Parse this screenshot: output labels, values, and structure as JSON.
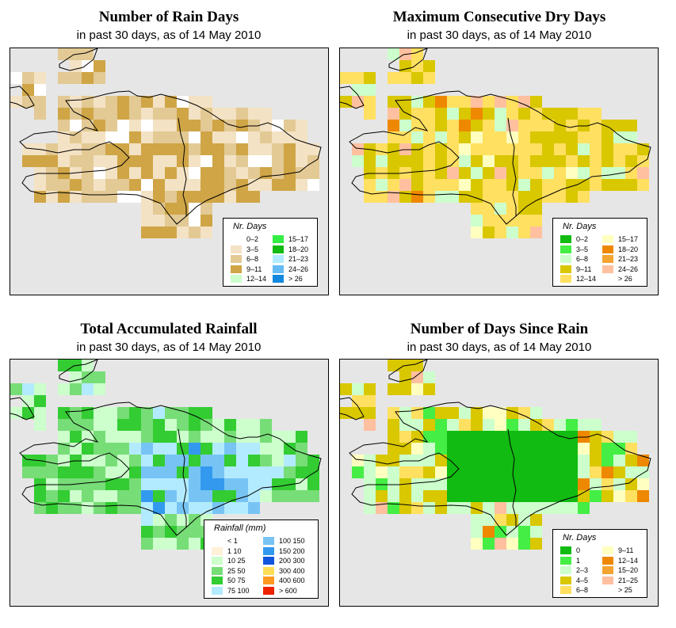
{
  "panels": [
    {
      "title": "Number of Rain Days",
      "subtitle": "in past 30 days, as of  14 May 2010",
      "legend": {
        "title": "Nr. Days",
        "items": [
          {
            "label": "0–2",
            "color": "#ffffff"
          },
          {
            "label": "3–5",
            "color": "#f3e2c4"
          },
          {
            "label": "6–8",
            "color": "#e3c994"
          },
          {
            "label": "9–11",
            "color": "#cfa546"
          },
          {
            "label": "12–14",
            "color": "#ccffcc"
          },
          {
            "label": "15–17",
            "color": "#33ee44"
          },
          {
            "label": "18–20",
            "color": "#11bb11"
          },
          {
            "label": "21–23",
            "color": "#b2ebff"
          },
          {
            "label": "24–26",
            "color": "#66bbf4"
          },
          {
            "label": "> 26",
            "color": "#1188dd"
          }
        ]
      }
    },
    {
      "title": "Maximum Consecutive Dry Days",
      "subtitle": "in past 30 days, as of  14 May 2010",
      "legend": {
        "title": "Nr. Days",
        "items": [
          {
            "label": "0–2",
            "color": "#11bb11"
          },
          {
            "label": "3–5",
            "color": "#44ee44"
          },
          {
            "label": "6–8",
            "color": "#ccffcc"
          },
          {
            "label": "9–11",
            "color": "#d9c700"
          },
          {
            "label": "12–14",
            "color": "#ffe060"
          },
          {
            "label": "15–17",
            "color": "#ffffc0"
          },
          {
            "label": "18–20",
            "color": "#ee8800"
          },
          {
            "label": "21–23",
            "color": "#f4a430"
          },
          {
            "label": "24–26",
            "color": "#ffc0a0"
          },
          {
            "label": "> 26",
            "color": "#ffffff"
          }
        ]
      }
    },
    {
      "title": "Total Accumulated Rainfall",
      "subtitle": "in past 30 days, as of  14 May 2010",
      "legend": {
        "title": "Rainfall (mm)",
        "items": [
          {
            "label": "< 1",
            "color": "#ffffff"
          },
          {
            "label": "1   10",
            "color": "#fff0d8"
          },
          {
            "label": "10   25",
            "color": "#ccffcc"
          },
          {
            "label": "25   50",
            "color": "#77dd77"
          },
          {
            "label": "50   75",
            "color": "#33cc33"
          },
          {
            "label": "75  100",
            "color": "#b2ebff"
          },
          {
            "label": "100  150",
            "color": "#77c4f4"
          },
          {
            "label": "150  200",
            "color": "#3399ee"
          },
          {
            "label": "200  300",
            "color": "#1155dd"
          },
          {
            "label": "300  400",
            "color": "#ffdd55"
          },
          {
            "label": "400  600",
            "color": "#ff9922"
          },
          {
            "label": "> 600",
            "color": "#ee2200"
          }
        ]
      }
    },
    {
      "title": "Number of Days Since Rain",
      "subtitle": "in past 30 days, as of  14 May 2010",
      "legend": {
        "title": "Nr. Days",
        "items": [
          {
            "label": "0",
            "color": "#11bb11"
          },
          {
            "label": "1",
            "color": "#44ee44"
          },
          {
            "label": "2–3",
            "color": "#ccffcc"
          },
          {
            "label": "4–5",
            "color": "#d9c700"
          },
          {
            "label": "6–8",
            "color": "#ffe060"
          },
          {
            "label": "9–11",
            "color": "#ffffc0"
          },
          {
            "label": "12–14",
            "color": "#ee8800"
          },
          {
            "label": "15–20",
            "color": "#f4a430"
          },
          {
            "label": "21–25",
            "color": "#ffc0a0"
          },
          {
            "label": "> 25",
            "color": "#ffffff"
          }
        ]
      }
    }
  ]
}
